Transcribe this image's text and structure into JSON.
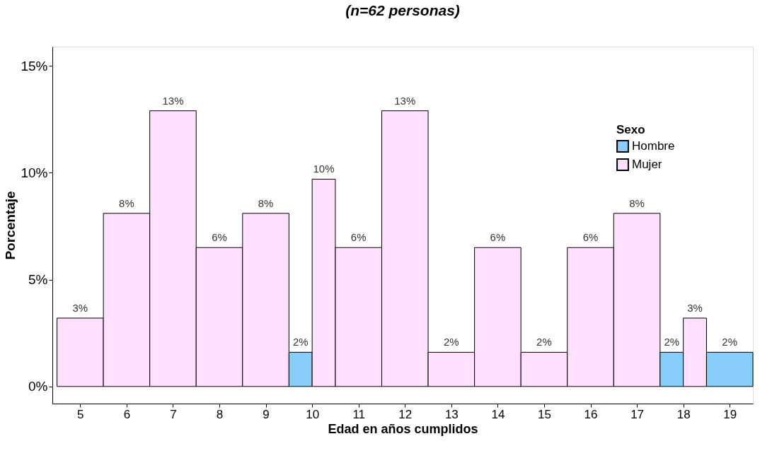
{
  "chart_data": {
    "type": "bar",
    "title": "(n=62 personas)",
    "xlabel": "Edad en años cumplidos",
    "ylabel": "Porcentaje",
    "legend_title": "Sexo",
    "legend": "top right",
    "grid": false,
    "categories": [
      "5",
      "6",
      "7",
      "8",
      "9",
      "10",
      "11",
      "12",
      "13",
      "14",
      "15",
      "16",
      "17",
      "18",
      "19"
    ],
    "series": [
      {
        "name": "Hombre",
        "color": "#88ccf8",
        "values": [
          null,
          null,
          null,
          null,
          null,
          1.6,
          null,
          null,
          null,
          null,
          null,
          null,
          null,
          1.6,
          1.6
        ],
        "value_labels": [
          null,
          null,
          null,
          null,
          null,
          "2%",
          null,
          null,
          null,
          null,
          null,
          null,
          null,
          "2%",
          "2%"
        ]
      },
      {
        "name": "Mujer",
        "color": "#ffe0ff",
        "values": [
          3.2,
          8.1,
          12.9,
          6.5,
          8.1,
          9.7,
          6.5,
          12.9,
          1.6,
          6.5,
          1.6,
          6.5,
          8.1,
          3.2,
          null
        ],
        "value_labels": [
          "3%",
          "8%",
          "13%",
          "6%",
          "8%",
          "10%",
          "6%",
          "13%",
          "2%",
          "6%",
          "2%",
          "6%",
          "8%",
          "3%",
          null
        ]
      }
    ],
    "ylim": [
      -0.8,
      15.9
    ],
    "yticks": [
      {
        "value": 0,
        "label": "0%"
      },
      {
        "value": 5,
        "label": "5%"
      },
      {
        "value": 10,
        "label": "10%"
      },
      {
        "value": 15,
        "label": "15%"
      }
    ]
  }
}
